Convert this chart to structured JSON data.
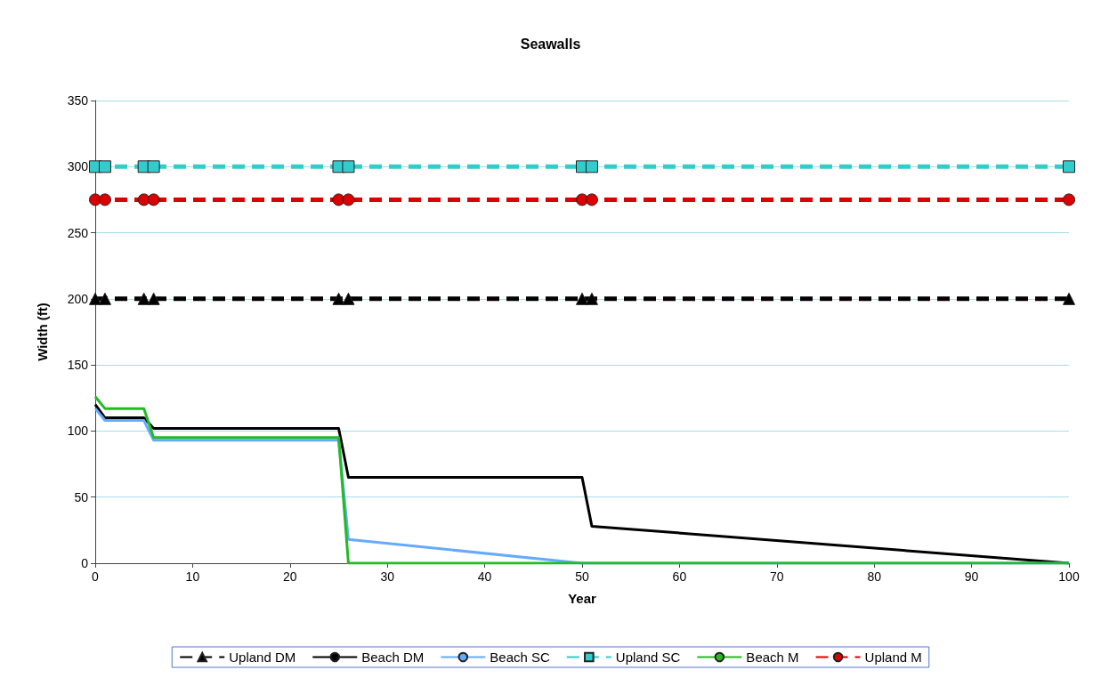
{
  "chart_data": {
    "type": "line",
    "title": "Seawalls",
    "xlabel": "Year",
    "ylabel": "Width (ft)",
    "x": [
      0,
      1,
      5,
      6,
      25,
      26,
      50,
      51,
      100
    ],
    "series": [
      {
        "name": "Upland DM",
        "color": "#000000",
        "values": [
          200,
          200,
          200,
          200,
          200,
          200,
          200,
          200,
          200
        ],
        "marker": "triangle",
        "line_style": "dashed"
      },
      {
        "name": "Beach DM",
        "color": "#000000",
        "values": [
          120,
          110,
          110,
          102,
          102,
          65,
          65,
          28,
          0
        ],
        "marker": "none",
        "line_style": "solid"
      },
      {
        "name": "Beach SC",
        "color": "#66aaff",
        "values": [
          117,
          108,
          108,
          93,
          93,
          18,
          0,
          0,
          0
        ],
        "marker": "none",
        "line_style": "solid"
      },
      {
        "name": "Upland SC",
        "color": "#33cccc",
        "values": [
          300,
          300,
          300,
          300,
          300,
          300,
          300,
          300,
          300
        ],
        "marker": "square",
        "line_style": "dashed"
      },
      {
        "name": "Beach M",
        "color": "#22bb22",
        "values": [
          126,
          117,
          117,
          95,
          95,
          0,
          0,
          0,
          0
        ],
        "marker": "none",
        "line_style": "solid"
      },
      {
        "name": "Upland M",
        "color": "#dd0000",
        "values": [
          275,
          275,
          275,
          275,
          275,
          275,
          275,
          275,
          275
        ],
        "marker": "circle",
        "line_style": "dashed"
      }
    ],
    "xlim": [
      0,
      100
    ],
    "xticks": [
      0,
      10,
      20,
      30,
      40,
      50,
      60,
      70,
      80,
      90,
      100
    ],
    "ylim": [
      0,
      350
    ],
    "yticks": [
      0,
      50,
      100,
      150,
      200,
      250,
      300,
      350
    ],
    "grid": "y",
    "legend": "bottom"
  }
}
